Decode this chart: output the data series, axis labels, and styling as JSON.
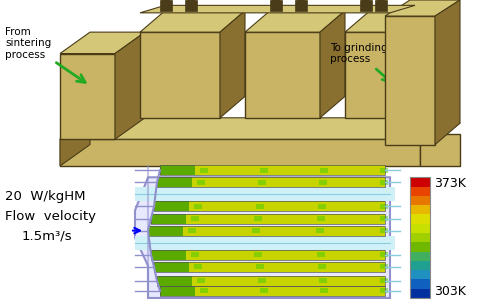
{
  "bg_color": "#ffffff",
  "furnace_annotation_left": "From\nsintering\nprocess",
  "furnace_annotation_right": "To grinding\nprocess",
  "left_text_line1": "20  W/kgHM",
  "left_text_line2": "Flow  velocity",
  "left_text_line3": "1.5m³/s",
  "colorbar_top_label": "373K",
  "colorbar_bottom_label": "303K",
  "colorbar_colors": [
    "#cc0000",
    "#e84400",
    "#e87700",
    "#e8b800",
    "#dddd00",
    "#c8e000",
    "#a0d000",
    "#70b800",
    "#40b060",
    "#20a090",
    "#2090c0",
    "#1060c0",
    "#0030a0"
  ],
  "furnace_color_main": "#c8b464",
  "furnace_color_light": "#d4c878",
  "furnace_color_dark": "#4a3c18",
  "furnace_color_side": "#8a7030",
  "arrow_color": "#22aa22",
  "border_color_purple": "#9090cc",
  "border_color_cyan": "#88ccdd",
  "tube_yellow": "#c8d400",
  "tube_green": "#5aaa00",
  "tube_line_green": "#44cc00"
}
